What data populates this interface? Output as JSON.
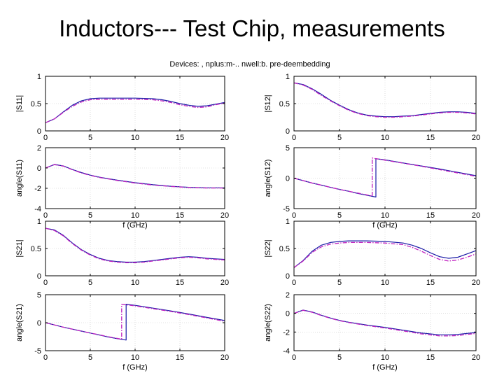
{
  "slide": {
    "title": "Inductors--- Test Chip, measurements",
    "figure_title": "Devices: , nplus:m-.. nwell:b. pre-deembedding"
  },
  "colors": {
    "measured": "#1a1aa6",
    "model": "#c020c0",
    "axis": "#000000",
    "grid": "#c8c8c8"
  },
  "chart_data": [
    {
      "type": "line",
      "id": "s11_mag",
      "ylabel": "|S11|",
      "xlabel": "",
      "xlim": [
        0,
        20
      ],
      "ylim": [
        0,
        1
      ],
      "xticks": [
        0,
        5,
        10,
        15,
        20
      ],
      "yticks": [
        0,
        0.5,
        1
      ],
      "x": [
        0,
        1,
        2,
        3,
        4,
        5,
        6,
        8,
        10,
        12,
        13,
        14,
        15,
        16,
        17,
        18,
        19,
        20
      ],
      "series": [
        {
          "style": "solid",
          "values": [
            0.15,
            0.22,
            0.35,
            0.47,
            0.55,
            0.59,
            0.6,
            0.6,
            0.6,
            0.59,
            0.57,
            0.54,
            0.5,
            0.47,
            0.45,
            0.46,
            0.49,
            0.52
          ]
        },
        {
          "style": "dash-dot",
          "values": [
            0.15,
            0.22,
            0.34,
            0.45,
            0.53,
            0.57,
            0.58,
            0.58,
            0.58,
            0.57,
            0.55,
            0.52,
            0.48,
            0.45,
            0.43,
            0.44,
            0.48,
            0.51
          ]
        }
      ]
    },
    {
      "type": "line",
      "id": "s12_mag",
      "ylabel": "|S12|",
      "xlabel": "",
      "xlim": [
        0,
        20
      ],
      "ylim": [
        0,
        1
      ],
      "xticks": [
        0,
        5,
        10,
        15,
        20
      ],
      "yticks": [
        0,
        0.5,
        1
      ],
      "x": [
        0,
        1,
        2,
        3,
        4,
        5,
        6,
        7,
        8,
        9,
        10,
        11,
        12,
        13,
        14,
        15,
        16,
        17,
        18,
        19,
        20
      ],
      "series": [
        {
          "style": "solid",
          "values": [
            0.88,
            0.85,
            0.77,
            0.67,
            0.56,
            0.47,
            0.39,
            0.33,
            0.29,
            0.27,
            0.26,
            0.26,
            0.27,
            0.28,
            0.3,
            0.32,
            0.34,
            0.35,
            0.35,
            0.34,
            0.32
          ]
        },
        {
          "style": "dash-dot",
          "values": [
            0.88,
            0.84,
            0.76,
            0.65,
            0.55,
            0.46,
            0.38,
            0.32,
            0.28,
            0.26,
            0.25,
            0.25,
            0.26,
            0.27,
            0.29,
            0.31,
            0.33,
            0.34,
            0.34,
            0.33,
            0.31
          ]
        }
      ]
    },
    {
      "type": "line",
      "id": "s11_ang",
      "ylabel": "angle(S11)",
      "xlabel": "f (GHz)",
      "xlim": [
        0,
        20
      ],
      "ylim": [
        -4,
        2
      ],
      "xticks": [
        0,
        5,
        10,
        15,
        20
      ],
      "yticks": [
        -4,
        -2,
        0,
        2
      ],
      "x": [
        0,
        1,
        2,
        3,
        4,
        5,
        6,
        8,
        10,
        12,
        14,
        16,
        18,
        20
      ],
      "series": [
        {
          "style": "solid",
          "values": [
            0.0,
            0.35,
            0.2,
            -0.15,
            -0.45,
            -0.7,
            -0.9,
            -1.2,
            -1.45,
            -1.65,
            -1.8,
            -1.9,
            -1.95,
            -1.95
          ]
        },
        {
          "style": "dash-dot",
          "values": [
            0.0,
            0.33,
            0.18,
            -0.17,
            -0.48,
            -0.73,
            -0.93,
            -1.23,
            -1.48,
            -1.68,
            -1.82,
            -1.92,
            -1.97,
            -1.97
          ]
        }
      ]
    },
    {
      "type": "line",
      "id": "s12_ang",
      "ylabel": "angle(S12)",
      "xlabel": "f (GHz)",
      "xlim": [
        0,
        20
      ],
      "ylim": [
        -5,
        5
      ],
      "xticks": [
        0,
        5,
        10,
        15,
        20
      ],
      "yticks": [
        -5,
        0,
        5
      ],
      "series": [
        {
          "style": "solid",
          "x": [
            0,
            1,
            2,
            3,
            4,
            5,
            6,
            7,
            8,
            9.0,
            9.0,
            10,
            12,
            14,
            16,
            18,
            20
          ],
          "values": [
            0.0,
            -0.4,
            -0.8,
            -1.15,
            -1.5,
            -1.85,
            -2.15,
            -2.5,
            -2.8,
            -3.1,
            3.2,
            3.0,
            2.5,
            2.0,
            1.5,
            0.95,
            0.4
          ]
        },
        {
          "style": "dash-dot",
          "x": [
            0,
            1,
            2,
            3,
            4,
            5,
            6,
            7,
            8,
            8.6,
            8.6,
            9,
            10,
            12,
            14,
            16,
            18,
            20
          ],
          "values": [
            0.0,
            -0.4,
            -0.8,
            -1.15,
            -1.5,
            -1.85,
            -2.15,
            -2.45,
            -2.75,
            -2.95,
            3.3,
            3.2,
            2.95,
            2.45,
            1.95,
            1.4,
            0.85,
            0.3
          ]
        }
      ]
    },
    {
      "type": "line",
      "id": "s21_mag",
      "ylabel": "|S21|",
      "xlabel": "",
      "xlim": [
        0,
        20
      ],
      "ylim": [
        0,
        1
      ],
      "xticks": [
        0,
        5,
        10,
        15,
        20
      ],
      "yticks": [
        0,
        0.5,
        1
      ],
      "x": [
        0,
        1,
        2,
        3,
        4,
        5,
        6,
        7,
        8,
        9,
        10,
        11,
        12,
        13,
        14,
        15,
        16,
        17,
        18,
        19,
        20
      ],
      "series": [
        {
          "style": "solid",
          "values": [
            0.87,
            0.84,
            0.74,
            0.6,
            0.48,
            0.39,
            0.32,
            0.28,
            0.26,
            0.25,
            0.25,
            0.26,
            0.28,
            0.3,
            0.32,
            0.34,
            0.35,
            0.34,
            0.32,
            0.31,
            0.3
          ]
        },
        {
          "style": "dash-dot",
          "values": [
            0.87,
            0.83,
            0.73,
            0.59,
            0.47,
            0.38,
            0.31,
            0.27,
            0.25,
            0.24,
            0.24,
            0.25,
            0.27,
            0.29,
            0.31,
            0.33,
            0.34,
            0.33,
            0.31,
            0.3,
            0.29
          ]
        }
      ]
    },
    {
      "type": "line",
      "id": "s22_mag",
      "ylabel": "|S22|",
      "xlabel": "",
      "xlim": [
        0,
        20
      ],
      "ylim": [
        0,
        1
      ],
      "xticks": [
        0,
        5,
        10,
        15,
        20
      ],
      "yticks": [
        0,
        0.5,
        1
      ],
      "x": [
        0,
        1,
        2,
        3,
        4,
        5,
        6,
        8,
        10,
        12,
        13,
        14,
        15,
        16,
        17,
        18,
        19,
        20
      ],
      "series": [
        {
          "style": "solid",
          "values": [
            0.15,
            0.28,
            0.45,
            0.56,
            0.61,
            0.63,
            0.64,
            0.64,
            0.63,
            0.6,
            0.56,
            0.5,
            0.42,
            0.35,
            0.32,
            0.34,
            0.4,
            0.46
          ]
        },
        {
          "style": "dash-dot",
          "values": [
            0.15,
            0.27,
            0.43,
            0.53,
            0.58,
            0.6,
            0.61,
            0.61,
            0.6,
            0.57,
            0.52,
            0.45,
            0.37,
            0.3,
            0.27,
            0.29,
            0.34,
            0.4
          ]
        }
      ]
    },
    {
      "type": "line",
      "id": "s21_ang",
      "ylabel": "angle(S21)",
      "xlabel": "f (GHz)",
      "xlim": [
        0,
        20
      ],
      "ylim": [
        -5,
        5
      ],
      "xticks": [
        0,
        5,
        10,
        15,
        20
      ],
      "yticks": [
        -5,
        0,
        5
      ],
      "series": [
        {
          "style": "solid",
          "x": [
            0,
            1,
            2,
            3,
            4,
            5,
            6,
            7,
            8,
            9.0,
            9.0,
            10,
            12,
            14,
            16,
            18,
            20
          ],
          "values": [
            0.0,
            -0.4,
            -0.8,
            -1.15,
            -1.5,
            -1.85,
            -2.2,
            -2.55,
            -2.85,
            -3.1,
            3.3,
            3.1,
            2.6,
            2.1,
            1.55,
            0.95,
            0.4
          ]
        },
        {
          "style": "dash-dot",
          "x": [
            0,
            1,
            2,
            3,
            4,
            5,
            6,
            7,
            8,
            8.5,
            8.5,
            9,
            10,
            12,
            14,
            16,
            18,
            20
          ],
          "values": [
            0.0,
            -0.4,
            -0.8,
            -1.15,
            -1.5,
            -1.85,
            -2.15,
            -2.5,
            -2.8,
            -2.95,
            3.3,
            3.2,
            3.0,
            2.5,
            2.0,
            1.45,
            0.85,
            0.25
          ]
        }
      ]
    },
    {
      "type": "line",
      "id": "s22_ang",
      "ylabel": "angle(S22)",
      "xlabel": "f (GHz)",
      "xlim": [
        0,
        20
      ],
      "ylim": [
        -4,
        2
      ],
      "xticks": [
        0,
        5,
        10,
        15,
        20
      ],
      "yticks": [
        -4,
        -2,
        0,
        2
      ],
      "x": [
        0,
        1,
        2,
        3,
        4,
        5,
        6,
        8,
        10,
        12,
        14,
        16,
        17,
        18,
        20
      ],
      "series": [
        {
          "style": "solid",
          "values": [
            0.0,
            0.35,
            0.15,
            -0.2,
            -0.5,
            -0.75,
            -0.95,
            -1.25,
            -1.5,
            -1.8,
            -2.1,
            -2.3,
            -2.3,
            -2.25,
            -2.05
          ]
        },
        {
          "style": "dash-dot",
          "values": [
            0.0,
            0.33,
            0.12,
            -0.23,
            -0.53,
            -0.78,
            -0.98,
            -1.3,
            -1.57,
            -1.88,
            -2.2,
            -2.42,
            -2.42,
            -2.37,
            -2.15
          ]
        }
      ]
    }
  ]
}
